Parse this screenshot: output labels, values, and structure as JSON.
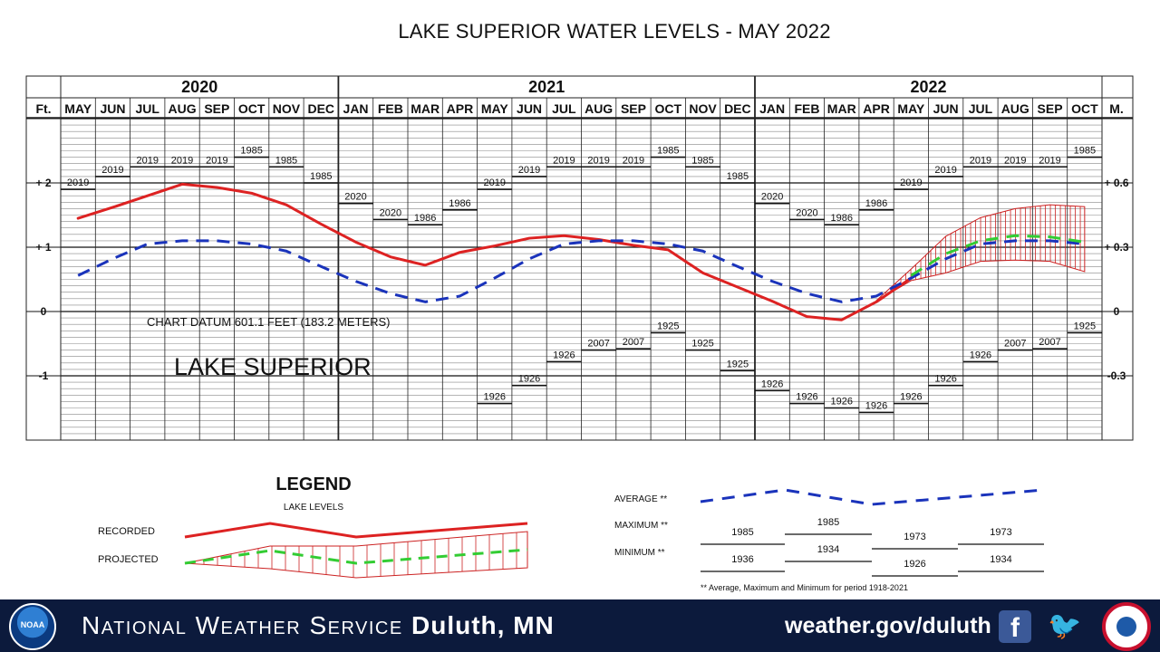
{
  "chart_data": {
    "type": "line",
    "title": "LAKE SUPERIOR WATER LEVELS - MAY 2022",
    "left_unit": "Ft.",
    "right_unit": "M.",
    "years": [
      {
        "label": "2020",
        "start": 0,
        "end": 8
      },
      {
        "label": "2021",
        "start": 8,
        "end": 20
      },
      {
        "label": "2022",
        "start": 20,
        "end": 30
      }
    ],
    "months": [
      "MAY",
      "JUN",
      "JUL",
      "AUG",
      "SEP",
      "OCT",
      "NOV",
      "DEC",
      "JAN",
      "FEB",
      "MAR",
      "APR",
      "MAY",
      "JUN",
      "JUL",
      "AUG",
      "SEP",
      "OCT",
      "NOV",
      "DEC",
      "JAN",
      "FEB",
      "MAR",
      "APR",
      "MAY",
      "JUN",
      "JUL",
      "AUG",
      "SEP",
      "OCT"
    ],
    "left_ticks": [
      {
        "value": 2,
        "label": "+ 2"
      },
      {
        "value": 1,
        "label": "+ 1"
      },
      {
        "value": 0,
        "label": "0"
      },
      {
        "value": -1,
        "label": "-1"
      }
    ],
    "right_ticks": [
      {
        "value": 2,
        "label": "+ 0.6"
      },
      {
        "value": 1,
        "label": "+ 0.3"
      },
      {
        "value": 0,
        "label": "0"
      },
      {
        "value": -1,
        "label": "-0.3"
      }
    ],
    "ylim": [
      -2,
      3
    ],
    "datum_note": "CHART DATUM 601.1 FEET (183.2 METERS)",
    "lake_label": "LAKE SUPERIOR",
    "series": [
      {
        "name": "RECORDED",
        "color": "#dd2222",
        "style": "solid",
        "x": [
          0,
          1,
          2,
          3,
          4,
          5,
          6,
          7,
          8,
          9,
          10,
          11,
          12,
          13,
          14,
          15,
          16,
          17,
          18,
          19,
          20,
          21,
          22,
          23,
          24
        ],
        "values": [
          1.45,
          1.62,
          1.8,
          1.98,
          1.93,
          1.84,
          1.66,
          1.36,
          1.08,
          0.85,
          0.72,
          0.92,
          1.02,
          1.14,
          1.18,
          1.12,
          1.03,
          0.96,
          0.6,
          0.38,
          0.16,
          -0.08,
          -0.13,
          0.15,
          0.52
        ]
      },
      {
        "name": "AVERAGE",
        "color": "#1a33bb",
        "style": "dashed",
        "x": [
          0,
          1,
          2,
          3,
          4,
          5,
          6,
          7,
          8,
          9,
          10,
          11,
          12,
          13,
          14,
          15,
          16,
          17,
          18,
          19,
          20,
          21,
          22,
          23,
          24,
          25,
          26,
          27,
          28,
          29
        ],
        "values": [
          0.56,
          0.82,
          1.05,
          1.1,
          1.1,
          1.05,
          0.94,
          0.7,
          0.47,
          0.28,
          0.15,
          0.24,
          0.52,
          0.82,
          1.05,
          1.1,
          1.1,
          1.05,
          0.94,
          0.7,
          0.47,
          0.28,
          0.15,
          0.24,
          0.52,
          0.82,
          1.05,
          1.1,
          1.1,
          1.05
        ]
      },
      {
        "name": "PROJECTED",
        "color": "#33cc33",
        "style": "dashed",
        "x": [
          24,
          25,
          26,
          27,
          28,
          29
        ],
        "values": [
          0.56,
          0.9,
          1.1,
          1.18,
          1.16,
          1.08
        ]
      }
    ],
    "projection_range": {
      "x": [
        23,
        24,
        25,
        26,
        27,
        28,
        29
      ],
      "upper": [
        0.17,
        0.66,
        1.17,
        1.46,
        1.6,
        1.66,
        1.63
      ],
      "lower": [
        0.16,
        0.48,
        0.6,
        0.78,
        0.8,
        0.78,
        0.62
      ]
    },
    "record_highs": [
      {
        "month": 0,
        "year": "2019",
        "value": 1.9
      },
      {
        "month": 1,
        "year": "2019",
        "value": 2.1
      },
      {
        "month": 2,
        "year": "2019",
        "value": 2.25
      },
      {
        "month": 3,
        "year": "2019",
        "value": 2.25
      },
      {
        "month": 4,
        "year": "2019",
        "value": 2.25
      },
      {
        "month": 5,
        "year": "1985",
        "value": 2.4
      },
      {
        "month": 6,
        "year": "1985",
        "value": 2.25
      },
      {
        "month": 7,
        "year": "1985",
        "value": 2.0
      },
      {
        "month": 8,
        "year": "2020",
        "value": 1.68
      },
      {
        "month": 9,
        "year": "2020",
        "value": 1.43
      },
      {
        "month": 10,
        "year": "1986",
        "value": 1.35
      },
      {
        "month": 11,
        "year": "1986",
        "value": 1.58
      },
      {
        "month": 12,
        "year": "2019",
        "value": 1.9
      },
      {
        "month": 13,
        "year": "2019",
        "value": 2.1
      },
      {
        "month": 14,
        "year": "2019",
        "value": 2.25
      },
      {
        "month": 15,
        "year": "2019",
        "value": 2.25
      },
      {
        "month": 16,
        "year": "2019",
        "value": 2.25
      },
      {
        "month": 17,
        "year": "1985",
        "value": 2.4
      },
      {
        "month": 18,
        "year": "1985",
        "value": 2.25
      },
      {
        "month": 19,
        "year": "1985",
        "value": 2.0
      },
      {
        "month": 20,
        "year": "2020",
        "value": 1.68
      },
      {
        "month": 21,
        "year": "2020",
        "value": 1.43
      },
      {
        "month": 22,
        "year": "1986",
        "value": 1.35
      },
      {
        "month": 23,
        "year": "1986",
        "value": 1.58
      },
      {
        "month": 24,
        "year": "2019",
        "value": 1.9
      },
      {
        "month": 25,
        "year": "2019",
        "value": 2.1
      },
      {
        "month": 26,
        "year": "2019",
        "value": 2.25
      },
      {
        "month": 27,
        "year": "2019",
        "value": 2.25
      },
      {
        "month": 28,
        "year": "2019",
        "value": 2.25
      },
      {
        "month": 29,
        "year": "1985",
        "value": 2.4
      }
    ],
    "record_lows": [
      {
        "month": 12,
        "year": "1926",
        "value": -1.43
      },
      {
        "month": 13,
        "year": "1926",
        "value": -1.15
      },
      {
        "month": 14,
        "year": "1926",
        "value": -0.78
      },
      {
        "month": 15,
        "year": "2007",
        "value": -0.6
      },
      {
        "month": 16,
        "year": "2007",
        "value": -0.58
      },
      {
        "month": 17,
        "year": "1925",
        "value": -0.33
      },
      {
        "month": 18,
        "year": "1925",
        "value": -0.6
      },
      {
        "month": 19,
        "year": "1925",
        "value": -0.92
      },
      {
        "month": 20,
        "year": "1926",
        "value": -1.23
      },
      {
        "month": 21,
        "year": "1926",
        "value": -1.43
      },
      {
        "month": 22,
        "year": "1926",
        "value": -1.5
      },
      {
        "month": 23,
        "year": "1926",
        "value": -1.57
      },
      {
        "month": 24,
        "year": "1926",
        "value": -1.43
      },
      {
        "month": 25,
        "year": "1926",
        "value": -1.15
      },
      {
        "month": 26,
        "year": "1926",
        "value": -0.78
      },
      {
        "month": 27,
        "year": "2007",
        "value": -0.6
      },
      {
        "month": 28,
        "year": "2007",
        "value": -0.58
      },
      {
        "month": 29,
        "year": "1925",
        "value": -0.33
      }
    ]
  },
  "legend": {
    "title": "LEGEND",
    "subtitle": "LAKE LEVELS",
    "recorded_label": "RECORDED",
    "projected_label": "PROJECTED",
    "average_label": "AVERAGE **",
    "maximum_label": "MAXIMUM **",
    "minimum_label": "MINIMUM **",
    "max_years": [
      "1985",
      "1985",
      "1973",
      "1973"
    ],
    "min_years": [
      "1936",
      "1934",
      "1926",
      "1934"
    ],
    "footnote": "** Average, Maximum and Minimum for period 1918-2021"
  },
  "footer": {
    "noaa": "NOAA",
    "org_prefix": "National Weather Service",
    "office": "Duluth, MN",
    "url": "weather.gov/duluth",
    "facebook": "f",
    "twitter": "🐦"
  },
  "colors": {
    "recorded": "#dd2222",
    "average": "#1a33bb",
    "projected": "#33cc33",
    "footer_bg": "#0c1a3c"
  }
}
